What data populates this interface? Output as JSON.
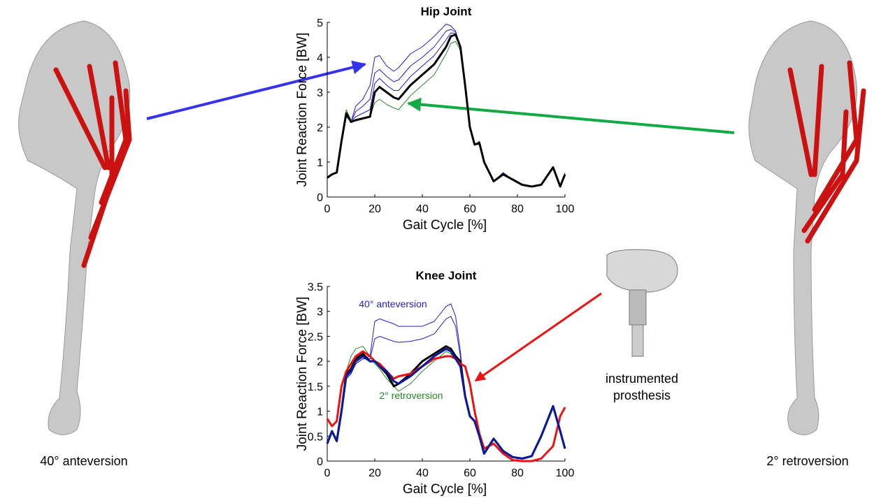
{
  "chart_data": [
    {
      "type": "line",
      "title": "Hip Joint",
      "x_label": "Gait Cycle [%]",
      "y_label": "Joint Reaction Force [BW]",
      "xlim": [
        0,
        100
      ],
      "xticks": [
        0,
        20,
        40,
        60,
        80,
        100
      ],
      "ylim": [
        0,
        5
      ],
      "yticks": [
        0,
        1,
        2,
        3,
        4,
        5
      ],
      "x": [
        0,
        2,
        4,
        6,
        8,
        10,
        12,
        15,
        18,
        20,
        22,
        25,
        28,
        30,
        35,
        40,
        45,
        50,
        52,
        54,
        56,
        58,
        60,
        62,
        64,
        66,
        70,
        74,
        78,
        82,
        86,
        90,
        95,
        98,
        100
      ],
      "series": [
        {
          "color": "#1f1fd6",
          "width": 1,
          "values": [
            0.55,
            0.65,
            0.7,
            1.6,
            2.3,
            2.15,
            2.6,
            2.8,
            3.2,
            4.0,
            4.05,
            3.75,
            3.6,
            3.7,
            4.1,
            4.3,
            4.6,
            4.95,
            4.9,
            4.75,
            4.3,
            3.2,
            2.0,
            1.5,
            1.5,
            1.0,
            0.45,
            0.7,
            0.5,
            0.35,
            0.3,
            0.35,
            0.85,
            0.3,
            0.6
          ]
        },
        {
          "color": "#1f1fd6",
          "width": 1,
          "values": [
            0.55,
            0.65,
            0.7,
            1.6,
            2.35,
            2.15,
            2.45,
            2.6,
            2.8,
            3.55,
            3.65,
            3.45,
            3.3,
            3.35,
            3.75,
            4.0,
            4.3,
            4.75,
            4.8,
            4.72,
            4.3,
            3.2,
            2.0,
            1.5,
            1.5,
            1.0,
            0.45,
            0.68,
            0.5,
            0.35,
            0.3,
            0.35,
            0.85,
            0.3,
            0.6
          ]
        },
        {
          "color": "#1f1fd6",
          "width": 1,
          "values": [
            0.55,
            0.65,
            0.7,
            1.6,
            2.38,
            2.15,
            2.3,
            2.4,
            2.5,
            3.25,
            3.4,
            3.2,
            3.05,
            3.05,
            3.45,
            3.75,
            4.05,
            4.5,
            4.7,
            4.68,
            4.3,
            3.2,
            2.0,
            1.5,
            1.52,
            1.0,
            0.45,
            0.66,
            0.5,
            0.35,
            0.3,
            0.35,
            0.85,
            0.3,
            0.6
          ]
        },
        {
          "color": "#2a8a2a",
          "width": 1,
          "values": [
            0.55,
            0.65,
            0.7,
            1.6,
            2.5,
            2.2,
            2.2,
            2.25,
            2.3,
            2.7,
            2.8,
            2.65,
            2.55,
            2.5,
            2.9,
            3.2,
            3.5,
            4.1,
            4.4,
            4.45,
            4.2,
            3.2,
            2.0,
            1.5,
            1.6,
            1.0,
            0.45,
            0.62,
            0.5,
            0.35,
            0.3,
            0.35,
            0.85,
            0.35,
            0.7
          ]
        },
        {
          "color": "#000000",
          "width": 3,
          "values": [
            0.55,
            0.65,
            0.7,
            1.6,
            2.4,
            2.15,
            2.2,
            2.25,
            2.3,
            3.0,
            3.15,
            3.0,
            2.85,
            2.8,
            3.2,
            3.5,
            3.8,
            4.3,
            4.6,
            4.65,
            4.3,
            3.2,
            2.0,
            1.5,
            1.55,
            1.0,
            0.45,
            0.65,
            0.5,
            0.35,
            0.3,
            0.35,
            0.85,
            0.3,
            0.65
          ]
        }
      ]
    },
    {
      "type": "line",
      "title": "Knee Joint",
      "x_label": "Gait Cycle [%]",
      "y_label": "Joint Reaction Force [BW]",
      "xlim": [
        0,
        100
      ],
      "xticks": [
        0,
        20,
        40,
        60,
        80,
        100
      ],
      "ylim": [
        0,
        3.5
      ],
      "yticks": [
        0,
        0.5,
        1,
        1.5,
        2,
        2.5,
        3,
        3.5
      ],
      "annotations": [
        {
          "text": "40° anteversion",
          "color": "#2222cc"
        },
        {
          "text": "2° retroversion",
          "color": "#228822"
        }
      ],
      "x": [
        0,
        2,
        4,
        6,
        8,
        10,
        12,
        15,
        18,
        20,
        22,
        25,
        28,
        30,
        35,
        40,
        45,
        50,
        52,
        54,
        56,
        58,
        60,
        62,
        64,
        66,
        70,
        74,
        78,
        82,
        86,
        90,
        95,
        98,
        100
      ],
      "series": [
        {
          "color": "#1f1fd6",
          "width": 1,
          "values": [
            0.35,
            0.6,
            0.4,
            1.0,
            1.65,
            1.75,
            1.95,
            2.05,
            2.1,
            2.8,
            2.85,
            2.8,
            2.75,
            2.7,
            2.7,
            2.7,
            2.8,
            3.1,
            3.15,
            2.9,
            2.2,
            1.3,
            0.9,
            0.8,
            0.5,
            0.15,
            0.45,
            0.2,
            0.08,
            0.05,
            0.1,
            0.5,
            1.1,
            0.6,
            0.25
          ]
        },
        {
          "color": "#1f1fd6",
          "width": 1,
          "values": [
            0.35,
            0.6,
            0.4,
            1.0,
            1.65,
            1.75,
            1.95,
            2.05,
            2.05,
            2.45,
            2.5,
            2.45,
            2.4,
            2.38,
            2.4,
            2.45,
            2.55,
            2.85,
            2.9,
            2.7,
            2.1,
            1.3,
            0.9,
            0.8,
            0.5,
            0.15,
            0.45,
            0.2,
            0.08,
            0.05,
            0.1,
            0.5,
            1.1,
            0.6,
            0.25
          ]
        },
        {
          "color": "#2a8a2a",
          "width": 1,
          "values": [
            0.35,
            0.6,
            0.4,
            1.05,
            1.8,
            2.1,
            2.25,
            2.3,
            2.1,
            1.95,
            1.85,
            1.65,
            1.5,
            1.4,
            1.55,
            1.8,
            2.0,
            2.2,
            2.15,
            2.05,
            1.95,
            1.3,
            0.9,
            0.8,
            0.5,
            0.15,
            0.45,
            0.2,
            0.08,
            0.05,
            0.1,
            0.5,
            1.1,
            0.6,
            0.25
          ]
        },
        {
          "color": "#000000",
          "width": 3,
          "values": [
            0.35,
            0.6,
            0.4,
            1.0,
            1.75,
            1.85,
            2.05,
            2.15,
            2.0,
            2.0,
            1.9,
            1.75,
            1.5,
            1.55,
            1.75,
            2.0,
            2.15,
            2.3,
            2.25,
            2.1,
            2.0,
            1.3,
            0.9,
            0.8,
            0.5,
            0.15,
            0.45,
            0.2,
            0.08,
            0.05,
            0.1,
            0.5,
            1.1,
            0.6,
            0.25
          ]
        },
        {
          "color": "#ee1111",
          "width": 3,
          "values": [
            0.85,
            0.7,
            0.8,
            1.5,
            1.8,
            1.95,
            2.1,
            2.2,
            2.1,
            2.0,
            1.95,
            1.8,
            1.65,
            1.7,
            1.75,
            1.9,
            2.05,
            2.1,
            2.1,
            2.05,
            1.95,
            1.9,
            1.55,
            1.0,
            0.55,
            0.25,
            0.35,
            0.15,
            0.02,
            0,
            0,
            0.05,
            0.3,
            0.9,
            1.08
          ]
        },
        {
          "color": "#0a1a9a",
          "width": 3,
          "values": [
            0.35,
            0.6,
            0.4,
            1.0,
            1.7,
            1.8,
            2.0,
            2.1,
            2.0,
            2.0,
            1.9,
            1.8,
            1.6,
            1.55,
            1.7,
            1.9,
            2.1,
            2.25,
            2.2,
            2.05,
            1.9,
            1.3,
            0.9,
            0.8,
            0.5,
            0.15,
            0.45,
            0.2,
            0.08,
            0.05,
            0.1,
            0.5,
            1.1,
            0.6,
            0.25
          ]
        }
      ]
    }
  ],
  "left_caption": "40° anteversion",
  "right_caption": "2° retroversion",
  "prosthesis_caption": [
    "instrumented",
    "prosthesis"
  ]
}
